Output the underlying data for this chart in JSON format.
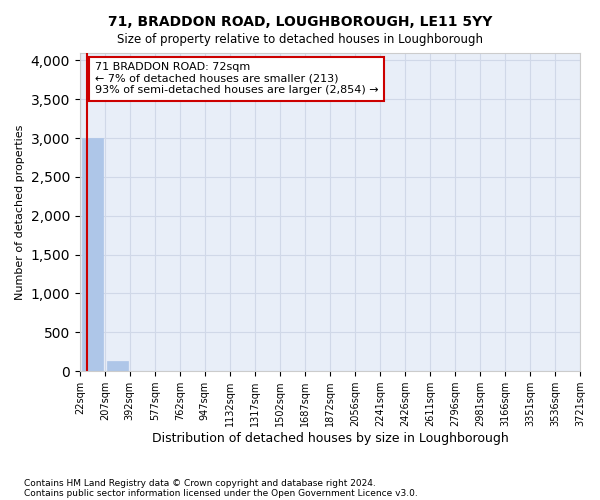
{
  "title": "71, BRADDON ROAD, LOUGHBOROUGH, LE11 5YY",
  "subtitle": "Size of property relative to detached houses in Loughborough",
  "xlabel": "Distribution of detached houses by size in Loughborough",
  "ylabel": "Number of detached properties",
  "bin_edges": [
    22,
    207,
    392,
    577,
    762,
    947,
    1132,
    1317,
    1502,
    1687,
    1872,
    2056,
    2241,
    2426,
    2611,
    2796,
    2981,
    3166,
    3351,
    3536,
    3721
  ],
  "tick_labels": [
    "22sqm",
    "207sqm",
    "392sqm",
    "577sqm",
    "762sqm",
    "947sqm",
    "1132sqm",
    "1317sqm",
    "1502sqm",
    "1687sqm",
    "1872sqm",
    "2056sqm",
    "2241sqm",
    "2426sqm",
    "2611sqm",
    "2796sqm",
    "2981sqm",
    "3166sqm",
    "3351sqm",
    "3536sqm",
    "3721sqm"
  ],
  "bar_heights": [
    3000,
    130,
    0,
    0,
    0,
    0,
    0,
    0,
    0,
    0,
    0,
    0,
    0,
    0,
    0,
    0,
    0,
    0,
    0,
    0
  ],
  "bar_color": "#aec6e8",
  "bar_edge_color": "#aec6e8",
  "grid_color": "#d0d8e8",
  "background_color": "#e8eef8",
  "property_value": 72,
  "property_line_color": "#cc0000",
  "annotation_text": "71 BRADDON ROAD: 72sqm\n← 7% of detached houses are smaller (213)\n93% of semi-detached houses are larger (2,854) →",
  "annotation_box_color": "#cc0000",
  "annotation_fill_color": "#ffffff",
  "ylim": [
    0,
    4100
  ],
  "yticks": [
    0,
    500,
    1000,
    1500,
    2000,
    2500,
    3000,
    3500,
    4000
  ],
  "footnote1": "Contains HM Land Registry data © Crown copyright and database right 2024.",
  "footnote2": "Contains public sector information licensed under the Open Government Licence v3.0."
}
